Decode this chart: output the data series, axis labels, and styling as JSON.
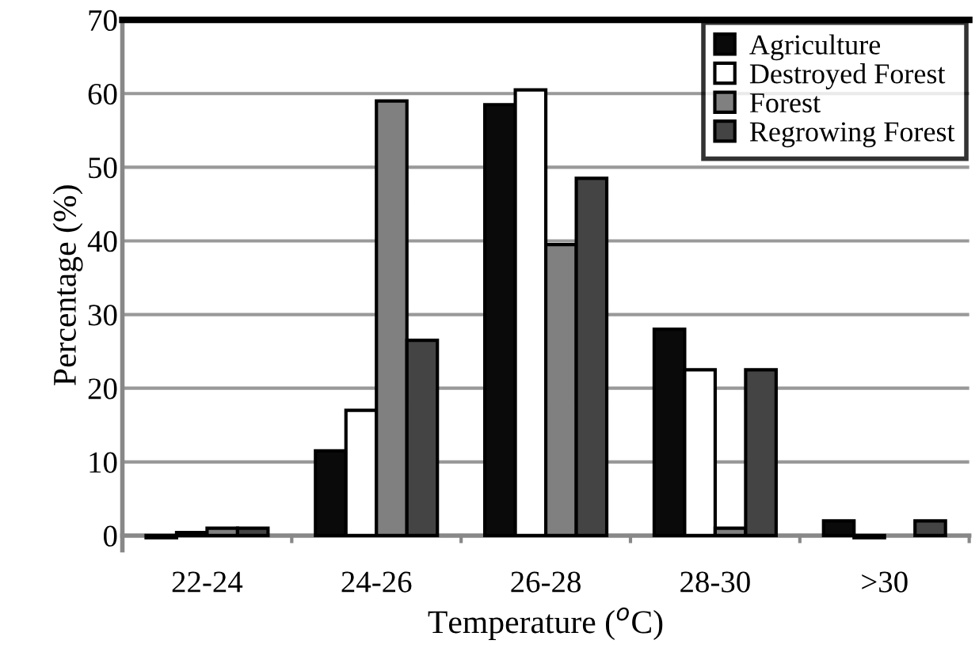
{
  "chart_data": {
    "type": "bar",
    "xlabel": "Temperature ($^{o}$C)",
    "ylabel": "Percentage (%)",
    "categories": [
      "22-24",
      "24-26",
      "26-28",
      "28-30",
      ">30"
    ],
    "series": [
      {
        "name": "Agriculture",
        "color": "#0a0a0a",
        "values": [
          -0.3,
          11.5,
          58.5,
          28,
          2
        ]
      },
      {
        "name": "Destroyed Forest",
        "color": "#ffffff",
        "values": [
          0.4,
          17,
          60.5,
          22.5,
          -0.3
        ]
      },
      {
        "name": "Forest",
        "color": "#808080",
        "values": [
          1,
          59,
          39.5,
          1,
          null
        ]
      },
      {
        "name": "Regrowing Forest",
        "color": "#444444",
        "values": [
          1,
          26.5,
          48.5,
          22.5,
          2
        ]
      }
    ],
    "ylim": [
      -2,
      70
    ],
    "yticks": [
      0,
      10,
      20,
      30,
      40,
      50,
      60,
      70
    ],
    "grid": "y",
    "legend": "top right"
  }
}
